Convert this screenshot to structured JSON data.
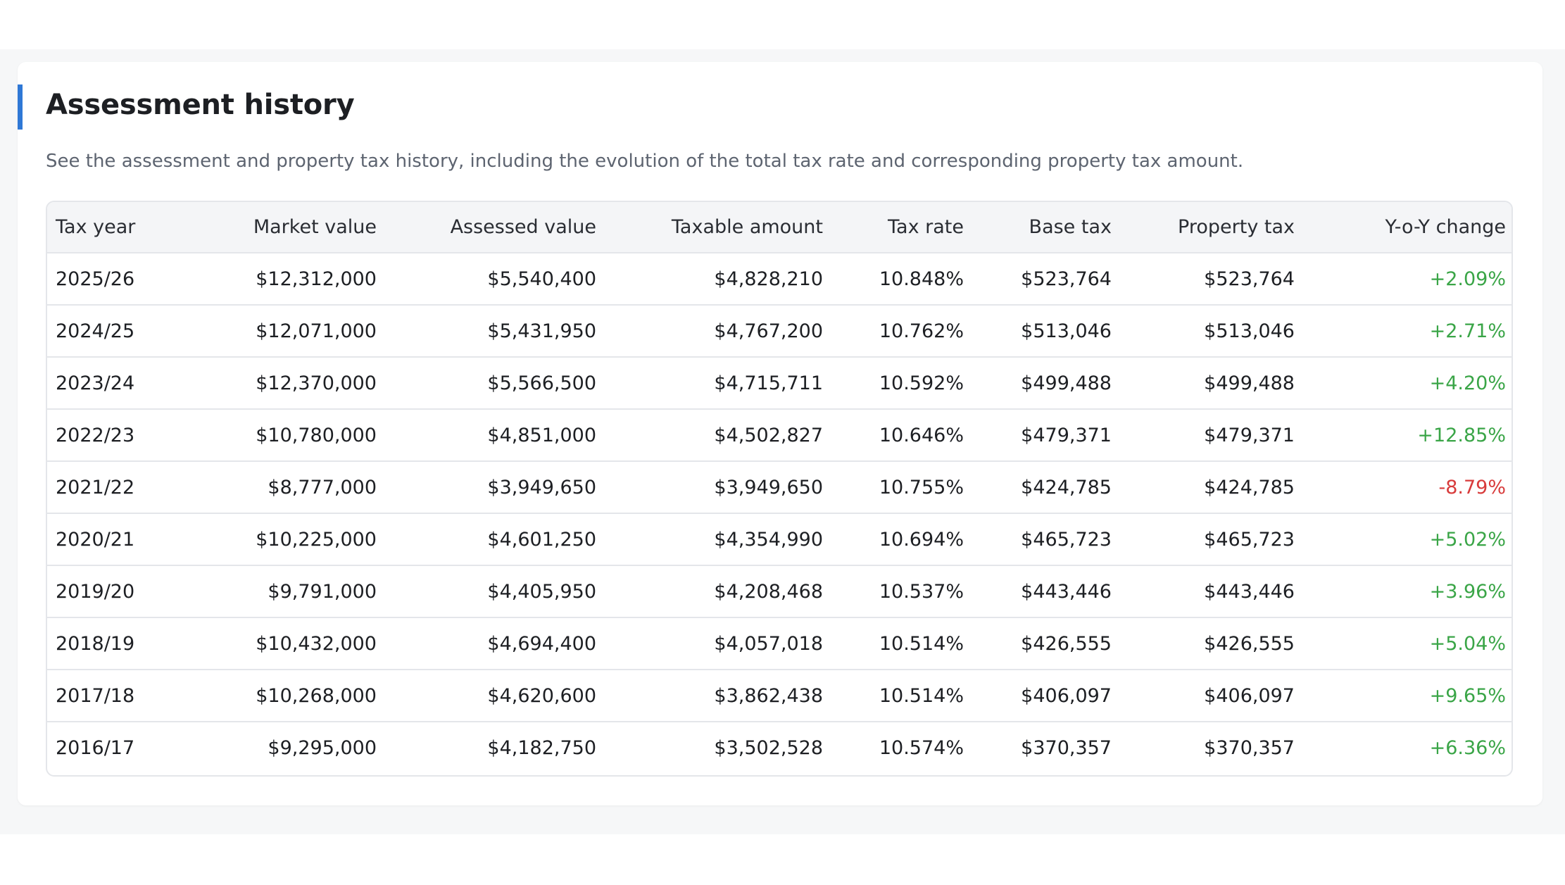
{
  "section": {
    "title": "Assessment history",
    "description": "See the assessment and property tax history, including the evolution of the total tax rate and corresponding property tax amount."
  },
  "table": {
    "headers": [
      "Tax year",
      "Market value",
      "Assessed value",
      "Taxable amount",
      "Tax rate",
      "Base tax",
      "Property tax",
      "Y-o-Y change"
    ],
    "rows": [
      [
        "2025/26",
        "$12,312,000",
        "$5,540,400",
        "$4,828,210",
        "10.848%",
        "$523,764",
        "$523,764",
        "+2.09%"
      ],
      [
        "2024/25",
        "$12,071,000",
        "$5,431,950",
        "$4,767,200",
        "10.762%",
        "$513,046",
        "$513,046",
        "+2.71%"
      ],
      [
        "2023/24",
        "$12,370,000",
        "$5,566,500",
        "$4,715,711",
        "10.592%",
        "$499,488",
        "$499,488",
        "+4.20%"
      ],
      [
        "2022/23",
        "$10,780,000",
        "$4,851,000",
        "$4,502,827",
        "10.646%",
        "$479,371",
        "$479,371",
        "+12.85%"
      ],
      [
        "2021/22",
        "$8,777,000",
        "$3,949,650",
        "$3,949,650",
        "10.755%",
        "$424,785",
        "$424,785",
        "-8.79%"
      ],
      [
        "2020/21",
        "$10,225,000",
        "$4,601,250",
        "$4,354,990",
        "10.694%",
        "$465,723",
        "$465,723",
        "+5.02%"
      ],
      [
        "2019/20",
        "$9,791,000",
        "$4,405,950",
        "$4,208,468",
        "10.537%",
        "$443,446",
        "$443,446",
        "+3.96%"
      ],
      [
        "2018/19",
        "$10,432,000",
        "$4,694,400",
        "$4,057,018",
        "10.514%",
        "$426,555",
        "$426,555",
        "+5.04%"
      ],
      [
        "2017/18",
        "$10,268,000",
        "$4,620,600",
        "$3,862,438",
        "10.514%",
        "$406,097",
        "$406,097",
        "+9.65%"
      ],
      [
        "2016/17",
        "$9,295,000",
        "$4,182,750",
        "$3,502,528",
        "10.574%",
        "$370,357",
        "$370,357",
        "+6.36%"
      ]
    ]
  },
  "colors": {
    "accent": "#2f78d6",
    "positive": "#3aa547",
    "negative": "#d83b3b"
  }
}
